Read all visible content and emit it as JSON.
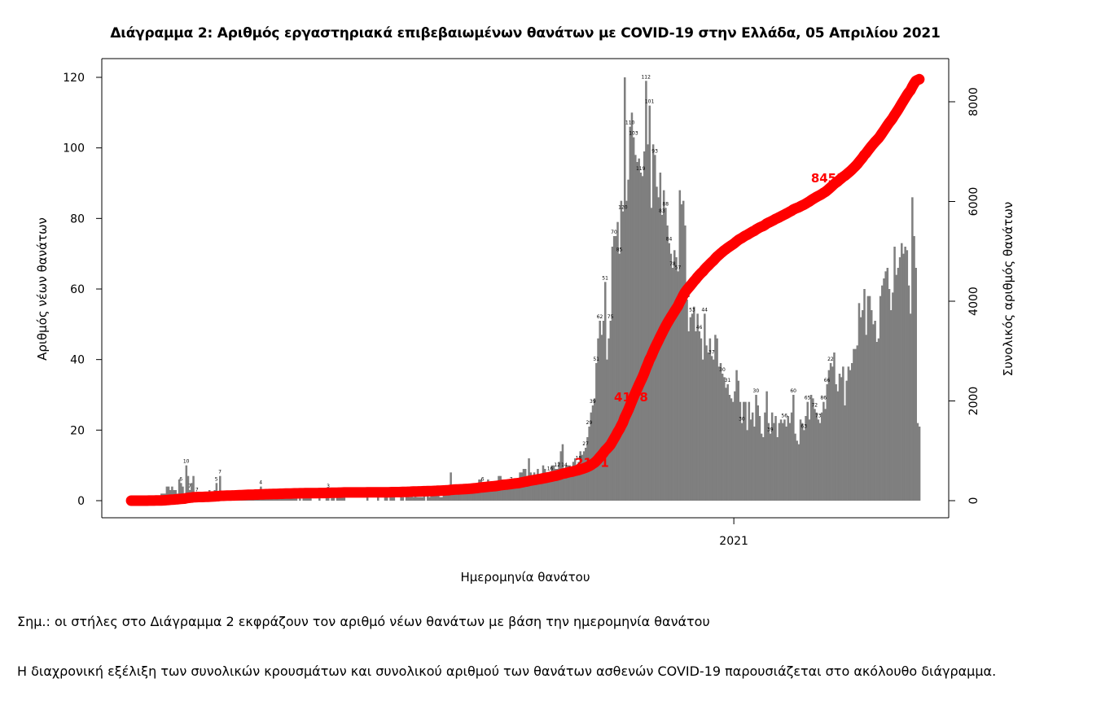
{
  "title": "Διάγραμμα 2: Αριθμός εργαστηριακά επιβεβαιωμένων θανάτων με COVID-19 στην Ελλάδα, 05 Απριλίου 2021",
  "notes": {
    "note1": "Σημ.: οι στήλες στο Διάγραμμα 2 εκφράζουν τον αριθμό νέων θανάτων με βάση την ημερομηνία θανάτου",
    "note2": "Η διαχρονική εξέλιξη των συνολικών κρουσμάτων και συνολικού αριθμού των θανάτων ασθενών COVID-19 παρουσιάζεται στο ακόλουθο διάγραμμα."
  },
  "colors": {
    "bars": "#7f7f7f",
    "cumulative": "#ff0000",
    "axis": "#000000"
  },
  "chart_data": {
    "type": "bar",
    "title": "Διάγραμμα 2: Αριθμός εργαστηριακά επιβεβαιωμένων θανάτων με COVID-19 στην Ελλάδα, 05 Απριλίου 2021",
    "xlabel": "Ημερομηνία θανάτου",
    "ylabel": "Αριθμός νέων θανάτων",
    "y2label": "Συνολικός αριθμός θανάτων",
    "ylim": [
      0,
      120
    ],
    "y_ticks": [
      "0",
      "20",
      "40",
      "60",
      "80",
      "100",
      "120"
    ],
    "y2lim": [
      0,
      8453
    ],
    "y2_ticks": [
      "0",
      "2000",
      "4000",
      "6000",
      "8000"
    ],
    "x_tick_label": "2021",
    "x_tick_day_index": 340,
    "grid": false,
    "series": [
      {
        "kind": "bar",
        "description_from_axis": "daily new deaths",
        "values": [
          0,
          0,
          0,
          0,
          0,
          0,
          0,
          0,
          0,
          0,
          1,
          0,
          1,
          0,
          1,
          1,
          0,
          2,
          2,
          2,
          4,
          4,
          3,
          4,
          3,
          3,
          2,
          6,
          5,
          4,
          2,
          10,
          7,
          3,
          5,
          7,
          2,
          2,
          2,
          1,
          0,
          1,
          2,
          1,
          3,
          2,
          2,
          3,
          5,
          1,
          7,
          2,
          1,
          2,
          1,
          1,
          1,
          1,
          1,
          2,
          2,
          2,
          2,
          2,
          2,
          1,
          2,
          1,
          1,
          1,
          3,
          1,
          1,
          4,
          1,
          2,
          1,
          1,
          1,
          1,
          1,
          1,
          2,
          1,
          2,
          1,
          2,
          1,
          1,
          1,
          1,
          2,
          1,
          1,
          0,
          1,
          0,
          1,
          1,
          1,
          1,
          1,
          0,
          0,
          0,
          0,
          1,
          0,
          0,
          0,
          1,
          3,
          0,
          2,
          1,
          0,
          1,
          1,
          1,
          2,
          1,
          0,
          0,
          0,
          0,
          0,
          0,
          0,
          0,
          0,
          0,
          0,
          0,
          2,
          0,
          0,
          0,
          0,
          0,
          1,
          0,
          0,
          0,
          1,
          1,
          0,
          2,
          1,
          1,
          0,
          0,
          0,
          2,
          1,
          0,
          2,
          2,
          1,
          4,
          1,
          2,
          1,
          1,
          1,
          1,
          2,
          0,
          2,
          1,
          2,
          2,
          2,
          2,
          3,
          1,
          1,
          2,
          2,
          2,
          3,
          8,
          3,
          3,
          2,
          2,
          3,
          2,
          2,
          3,
          3,
          2,
          3,
          4,
          4,
          4,
          5,
          6,
          6,
          5,
          4,
          3,
          6,
          5,
          4,
          4,
          3,
          5,
          7,
          7,
          6,
          6,
          4,
          5,
          6,
          5,
          6,
          6,
          4,
          5,
          8,
          8,
          9,
          9,
          7,
          12,
          8,
          7,
          8,
          6,
          9,
          7,
          7,
          10,
          9,
          8,
          8,
          8,
          10,
          10,
          9,
          9,
          11,
          14,
          16,
          9,
          10,
          10,
          10,
          8,
          11,
          12,
          9,
          11,
          14,
          13,
          14,
          15,
          18,
          21,
          25,
          27,
          29,
          39,
          46,
          51,
          47,
          51,
          62,
          40,
          46,
          51,
          72,
          75,
          75,
          79,
          70,
          85,
          82,
          120,
          85,
          91,
          106,
          110,
          103,
          98,
          96,
          97,
          93,
          92,
          99,
          119,
          101,
          112,
          83,
          101,
          98,
          89,
          86,
          93,
          81,
          88,
          83,
          78,
          73,
          70,
          66,
          71,
          69,
          65,
          88,
          84,
          85,
          78,
          57,
          48,
          52,
          53,
          55,
          48,
          53,
          48,
          46,
          40,
          53,
          44,
          42,
          46,
          41,
          40,
          47,
          46,
          38,
          39,
          36,
          35,
          32,
          33,
          30,
          29,
          28,
          31,
          37,
          34,
          28,
          22,
          28,
          28,
          20,
          28,
          23,
          25,
          21,
          30,
          27,
          24,
          19,
          18,
          25,
          31,
          22,
          19,
          25,
          22,
          24,
          18,
          22,
          23,
          22,
          23,
          21,
          24,
          22,
          25,
          30,
          19,
          17,
          16,
          23,
          22,
          20,
          24,
          28,
          23,
          30,
          29,
          26,
          25,
          23,
          22,
          25,
          28,
          26,
          33,
          37,
          39,
          38,
          42,
          33,
          31,
          36,
          35,
          38,
          27,
          34,
          38,
          37,
          39,
          43,
          43,
          44,
          56,
          52,
          54,
          60,
          47,
          58,
          58,
          54,
          50,
          51,
          45,
          46,
          58,
          61,
          63,
          65,
          66,
          60,
          54,
          59,
          72,
          64,
          66,
          69,
          73,
          70,
          72,
          71,
          61,
          53,
          86,
          75,
          66,
          22,
          21
        ]
      },
      {
        "kind": "line",
        "description_from_axis": "cumulative deaths",
        "anchor_labels": [
          "2151",
          "4198",
          "8453"
        ],
        "anchor_day_index": [
          261,
          283,
          393
        ],
        "final_value": 8453
      }
    ],
    "data_labels": [
      {
        "day": 31,
        "text": "10"
      },
      {
        "day": 33,
        "text": "7"
      },
      {
        "day": 37,
        "text": "7"
      },
      {
        "day": 28,
        "text": "6"
      },
      {
        "day": 48,
        "text": "5"
      },
      {
        "day": 50,
        "text": "7"
      },
      {
        "day": 73,
        "text": "4"
      },
      {
        "day": 111,
        "text": "3"
      },
      {
        "day": 153,
        "text": "4"
      },
      {
        "day": 176,
        "text": "8"
      },
      {
        "day": 198,
        "text": "6"
      },
      {
        "day": 214,
        "text": "7"
      },
      {
        "day": 217,
        "text": "12"
      },
      {
        "day": 236,
        "text": "16"
      },
      {
        "day": 240,
        "text": "12"
      },
      {
        "day": 244,
        "text": "14"
      },
      {
        "day": 248,
        "text": "14"
      },
      {
        "day": 252,
        "text": "18"
      },
      {
        "day": 256,
        "text": "27"
      },
      {
        "day": 258,
        "text": "29"
      },
      {
        "day": 260,
        "text": "39"
      },
      {
        "day": 262,
        "text": "51"
      },
      {
        "day": 264,
        "text": "62"
      },
      {
        "day": 267,
        "text": "51"
      },
      {
        "day": 270,
        "text": "75"
      },
      {
        "day": 272,
        "text": "70"
      },
      {
        "day": 275,
        "text": "85"
      },
      {
        "day": 277,
        "text": "120"
      },
      {
        "day": 281,
        "text": "110"
      },
      {
        "day": 283,
        "text": "103"
      },
      {
        "day": 287,
        "text": "119"
      },
      {
        "day": 290,
        "text": "112"
      },
      {
        "day": 292,
        "text": "101"
      },
      {
        "day": 295,
        "text": "93"
      },
      {
        "day": 299,
        "text": "83"
      },
      {
        "day": 301,
        "text": "88"
      },
      {
        "day": 303,
        "text": "84"
      },
      {
        "day": 305,
        "text": "78"
      },
      {
        "day": 308,
        "text": "57"
      },
      {
        "day": 313,
        "text": "53"
      },
      {
        "day": 316,
        "text": "53"
      },
      {
        "day": 320,
        "text": "46"
      },
      {
        "day": 323,
        "text": "44"
      },
      {
        "day": 327,
        "text": "37"
      },
      {
        "day": 333,
        "text": "30"
      },
      {
        "day": 336,
        "text": "31"
      },
      {
        "day": 344,
        "text": "30"
      },
      {
        "day": 352,
        "text": "30"
      },
      {
        "day": 360,
        "text": "39"
      },
      {
        "day": 368,
        "text": "56"
      },
      {
        "day": 373,
        "text": "60"
      },
      {
        "day": 379,
        "text": "63"
      },
      {
        "day": 381,
        "text": "65"
      },
      {
        "day": 385,
        "text": "72"
      },
      {
        "day": 387,
        "text": "73"
      },
      {
        "day": 390,
        "text": "86"
      },
      {
        "day": 392,
        "text": "66"
      },
      {
        "day": 394,
        "text": "22"
      }
    ]
  }
}
